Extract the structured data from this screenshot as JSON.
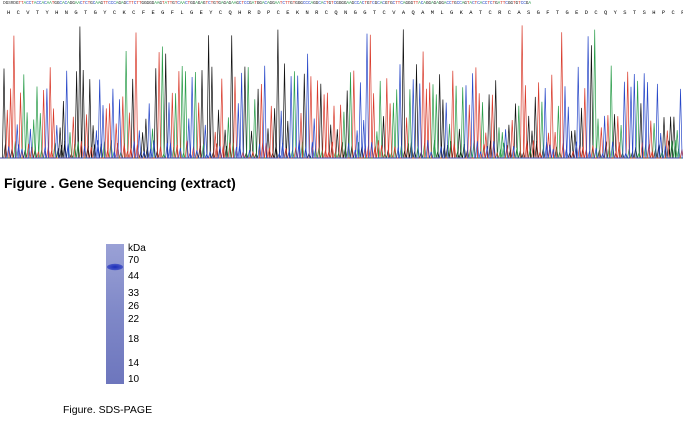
{
  "sequencing": {
    "dna": "DGSRDGTTACCTACCACAATGGCACAGGAACTCTGCAAGTTCCCAGAGCTTCTTGGGGGAAGTATTGTCAACTGGAGAGTCTGTGAGAGAAGCTCCGATGGACAGGAATCTTGTGGGCCCAGGCACTGTCGGGGAAGCCACTGTCGCACGTGCTTCAGGGTTACAGGAGAGGACCTGCCAGTACTCACCTCTGATTCGGTGTCCGA",
    "protein": "H C V T Y H N G T G Y C K C F E G F L G E Y C Q H R D P C E K N R C Q N G G T C V A Q A M L G K A T C R C A S G F T G E D C Q Y S T S H P C F V S R",
    "colors": {
      "A": "#2a9d4a",
      "C": "#2747c8",
      "G": "#111111",
      "T": "#d93a2b"
    }
  },
  "figure1": {
    "caption": "Figure . Gene Sequencing (extract)"
  },
  "gel": {
    "unit": "kDa",
    "markers": [
      "70",
      "44",
      "33",
      "26",
      "22",
      "18",
      "14",
      "10"
    ],
    "band_color": "#2b3fbf",
    "lane_color": "#7d86c6"
  },
  "figure2": {
    "caption": "Figure. SDS-PAGE"
  }
}
